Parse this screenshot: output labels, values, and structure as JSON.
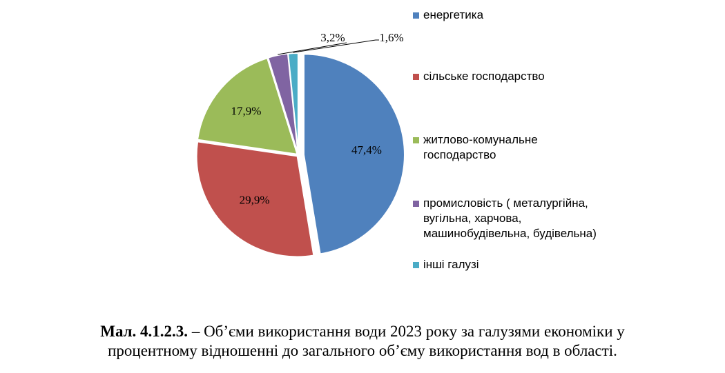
{
  "chart_data": {
    "type": "pie",
    "categories": [
      "енергетика",
      "сільське господарство",
      "житлово-комунальне\nгосподарство",
      "промисловість ( металургійна,\nвугільна, харчова,\nмашинобудівельна, будівельна)",
      "інші галузі"
    ],
    "values": [
      47.4,
      29.9,
      17.9,
      3.2,
      1.6
    ],
    "value_labels": [
      "47,4%",
      "29,9%",
      "17,9%",
      "3,2%",
      "1,6%"
    ],
    "colors": [
      "#4F81BD",
      "#C0504D",
      "#9BBB59",
      "#8064A2",
      "#4BACC6"
    ],
    "legend_position": "right"
  },
  "caption": {
    "number": "Мал. 4.1.2.3.",
    "line1": " – Об’єми використання води 2023 року за галузями економіки у",
    "line2": "процентному відношенні до загального об’єму використання вод в області."
  }
}
